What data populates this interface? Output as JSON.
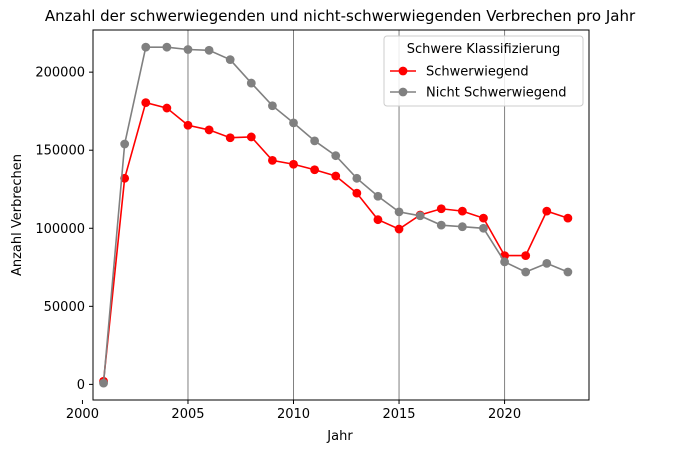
{
  "chart_data": {
    "type": "line",
    "title": "Anzahl der schwerwiegenden und nicht-schwerwiegenden Verbrechen pro Jahr",
    "xlabel": "Jahr",
    "ylabel": "Anzahl Verbrechen",
    "xlim": [
      2000.5,
      2024.0
    ],
    "ylim": [
      -10000,
      227000
    ],
    "xticks": [
      2000,
      2005,
      2010,
      2015,
      2020
    ],
    "yticks": [
      0,
      50000,
      100000,
      150000,
      200000
    ],
    "vertical_grid": true,
    "legend": {
      "title": "Schwere Klassifizierung",
      "position": "top-right"
    },
    "x": [
      2001,
      2002,
      2003,
      2004,
      2005,
      2006,
      2007,
      2008,
      2009,
      2010,
      2011,
      2012,
      2013,
      2014,
      2015,
      2016,
      2017,
      2018,
      2019,
      2020,
      2021,
      2022,
      2023
    ],
    "series": [
      {
        "name": "Schwerwiegend",
        "color": "#ff0000",
        "values": [
          2000,
          132000,
          180500,
          177000,
          166000,
          163000,
          158000,
          158500,
          143500,
          141000,
          137500,
          133500,
          122500,
          105500,
          99500,
          108500,
          112500,
          111000,
          106500,
          82500,
          82500,
          111000,
          106500
        ]
      },
      {
        "name": "Nicht Schwerwiegend",
        "color": "#808080",
        "values": [
          800,
          154000,
          216000,
          216000,
          214500,
          214000,
          208000,
          193000,
          178500,
          167500,
          156000,
          146500,
          132000,
          120500,
          110500,
          108000,
          102000,
          101000,
          100000,
          78500,
          72000,
          77500,
          72000
        ]
      }
    ]
  }
}
